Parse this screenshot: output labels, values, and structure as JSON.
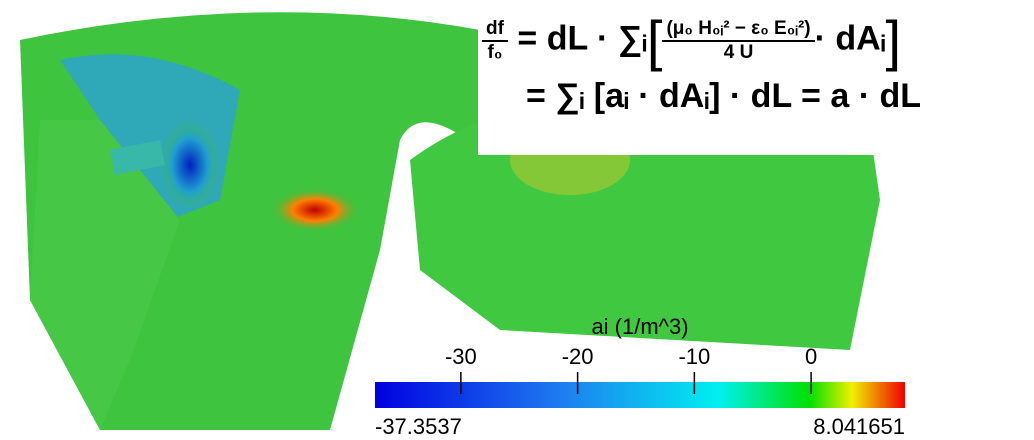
{
  "equation": {
    "lhs_numerator": "df",
    "lhs_denominator": "f₀",
    "line1_middle": "= dL · ∑ᵢ",
    "inner_numerator": "(μ₀ H₀ᵢ² − ε₀ E₀ᵢ²)",
    "inner_denominator": "4 U",
    "line1_end": "· dAᵢ",
    "line2": "= ∑ᵢ [aᵢ · dAᵢ] · dL = a · dL"
  },
  "chart_data": {
    "type": "colorbar",
    "title": "ai (1/m^3)",
    "clim": [
      -37.3537,
      8.041651
    ],
    "xlim": [
      -37.3537,
      8.041651
    ],
    "xticks": [
      -30,
      -20,
      -10,
      0
    ]
  }
}
